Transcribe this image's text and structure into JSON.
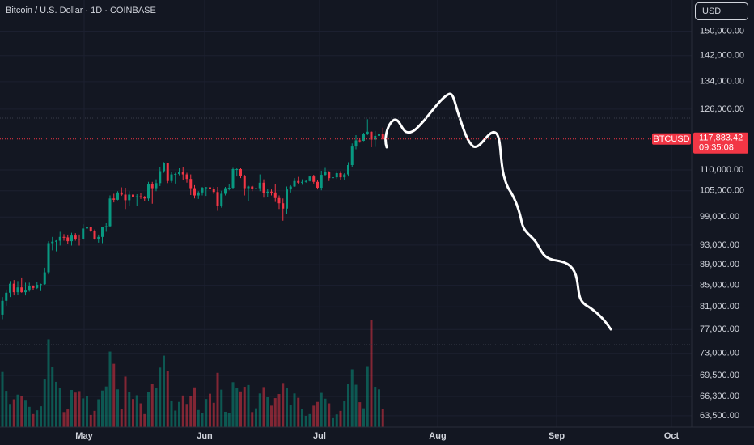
{
  "chart_data": {
    "type": "candlestick",
    "title": "Bitcoin / U.S. Dollar · 1D · COINBASE",
    "currency": "USD",
    "symbol": "BTCUSD",
    "last_price": {
      "value": 117883.42,
      "label": "117,883.42"
    },
    "countdown": "09:35:08",
    "months": [
      "May",
      "Jun",
      "Jul",
      "Aug",
      "Sep",
      "Oct"
    ],
    "up_color": "#089981",
    "down_color": "#f23645",
    "log_scale": true,
    "grid": true,
    "ylim": [
      61900,
      160800
    ],
    "yticks": [
      {
        "value": 150000,
        "label": "150,000.00"
      },
      {
        "value": 142000,
        "label": "142,000.00"
      },
      {
        "value": 134000,
        "label": "134,000.00"
      },
      {
        "value": 126000,
        "label": "126,000.00"
      },
      {
        "value": 110000,
        "label": "110,000.00"
      },
      {
        "value": 105000,
        "label": "105,000.00"
      },
      {
        "value": 99000,
        "label": "99,000.00"
      },
      {
        "value": 93000,
        "label": "93,000.00"
      },
      {
        "value": 89000,
        "label": "89,000.00"
      },
      {
        "value": 85000,
        "label": "85,000.00"
      },
      {
        "value": 81000,
        "label": "81,000.00"
      },
      {
        "value": 77000,
        "label": "77,000.00"
      },
      {
        "value": 73000,
        "label": "73,000.00"
      },
      {
        "value": 69500,
        "label": "69,500.00"
      },
      {
        "value": 66300,
        "label": "66,300.00"
      },
      {
        "value": 63500,
        "label": "63,500.00"
      }
    ],
    "candles": [
      [
        79600,
        82800,
        78800,
        82100
      ],
      [
        82100,
        84200,
        81200,
        83600
      ],
      [
        83600,
        85800,
        82800,
        85300
      ],
      [
        85300,
        86000,
        83100,
        83700
      ],
      [
        83700,
        85800,
        83200,
        84600
      ],
      [
        84600,
        86500,
        83600,
        83700
      ],
      [
        83700,
        85500,
        83100,
        84000
      ],
      [
        84000,
        85500,
        83800,
        84900
      ],
      [
        84900,
        85000,
        84100,
        84500
      ],
      [
        84500,
        85600,
        84300,
        85100
      ],
      [
        85100,
        85300,
        83900,
        85200
      ],
      [
        85200,
        88400,
        85100,
        87500
      ],
      [
        87500,
        93800,
        87100,
        93400
      ],
      [
        93400,
        94700,
        91900,
        93700
      ],
      [
        93700,
        94000,
        91700,
        93900
      ],
      [
        93900,
        95800,
        92900,
        94700
      ],
      [
        94700,
        95300,
        93900,
        94600
      ],
      [
        94600,
        95200,
        93300,
        93800
      ],
      [
        93800,
        95600,
        92900,
        95000
      ],
      [
        95000,
        95500,
        93900,
        94300
      ],
      [
        94300,
        95200,
        92900,
        94200
      ],
      [
        94200,
        97400,
        94100,
        96500
      ],
      [
        96500,
        97900,
        96300,
        96900
      ],
      [
        96900,
        96900,
        95700,
        95900
      ],
      [
        95900,
        96300,
        94100,
        94300
      ],
      [
        94300,
        95200,
        93500,
        94700
      ],
      [
        94700,
        96900,
        93400,
        96800
      ],
      [
        96800,
        97700,
        95800,
        97000
      ],
      [
        97000,
        103900,
        96900,
        103200
      ],
      [
        103200,
        104300,
        102300,
        102900
      ],
      [
        102900,
        104900,
        102800,
        104600
      ],
      [
        104600,
        105800,
        103800,
        104100
      ],
      [
        104100,
        105700,
        100800,
        102800
      ],
      [
        102800,
        104900,
        101400,
        104100
      ],
      [
        104100,
        104300,
        102600,
        103500
      ],
      [
        103500,
        104200,
        101400,
        103700
      ],
      [
        103700,
        104500,
        103100,
        103500
      ],
      [
        103500,
        103800,
        102600,
        103200
      ],
      [
        103200,
        107100,
        102700,
        106500
      ],
      [
        106500,
        107100,
        102000,
        105600
      ],
      [
        105600,
        107700,
        104900,
        106800
      ],
      [
        106800,
        110800,
        106100,
        109700
      ],
      [
        109700,
        111900,
        109300,
        111700
      ],
      [
        111700,
        111800,
        106800,
        107300
      ],
      [
        107300,
        109500,
        106900,
        108900
      ],
      [
        108900,
        109300,
        106700,
        109000
      ],
      [
        109000,
        110400,
        108700,
        109400
      ],
      [
        109400,
        110700,
        107600,
        108900
      ],
      [
        108900,
        109300,
        106900,
        107800
      ],
      [
        107800,
        108900,
        104000,
        105600
      ],
      [
        105600,
        106300,
        103200,
        103900
      ],
      [
        103900,
        104900,
        103100,
        104600
      ],
      [
        104600,
        105900,
        103900,
        105700
      ],
      [
        105700,
        105900,
        103800,
        105800
      ],
      [
        105800,
        106800,
        104900,
        105400
      ],
      [
        105400,
        105900,
        104200,
        104700
      ],
      [
        104700,
        105900,
        100400,
        101500
      ],
      [
        101500,
        105000,
        101100,
        104300
      ],
      [
        104300,
        105900,
        103900,
        105600
      ],
      [
        105600,
        106500,
        105100,
        105700
      ],
      [
        105700,
        110500,
        105400,
        110200
      ],
      [
        110200,
        110400,
        108400,
        110200
      ],
      [
        110200,
        110400,
        108000,
        108600
      ],
      [
        108600,
        108800,
        103900,
        105600
      ],
      [
        105600,
        106200,
        102700,
        106000
      ],
      [
        106000,
        106200,
        104900,
        105400
      ],
      [
        105400,
        106200,
        104500,
        105600
      ],
      [
        105600,
        108900,
        104900,
        106900
      ],
      [
        106900,
        107700,
        103400,
        104500
      ],
      [
        104500,
        105500,
        103500,
        104800
      ],
      [
        104800,
        105300,
        103900,
        104600
      ],
      [
        104600,
        106500,
        102400,
        103300
      ],
      [
        103300,
        103900,
        100800,
        102100
      ],
      [
        102100,
        103200,
        98200,
        100900
      ],
      [
        100900,
        106000,
        99600,
        105300
      ],
      [
        105300,
        106300,
        104600,
        106000
      ],
      [
        106000,
        108000,
        105900,
        107300
      ],
      [
        107300,
        108300,
        106600,
        106900
      ],
      [
        106900,
        107700,
        106400,
        107100
      ],
      [
        107100,
        107600,
        106900,
        107300
      ],
      [
        107300,
        108500,
        107200,
        108400
      ],
      [
        108400,
        108800,
        106700,
        107100
      ],
      [
        107100,
        107600,
        105300,
        105700
      ],
      [
        105700,
        109800,
        105100,
        108800
      ],
      [
        108800,
        110500,
        108600,
        109600
      ],
      [
        109600,
        109700,
        107300,
        108000
      ],
      [
        108000,
        108400,
        107800,
        108200
      ],
      [
        108200,
        109700,
        107800,
        109200
      ],
      [
        109200,
        109700,
        107500,
        108200
      ],
      [
        108200,
        109200,
        107500,
        108900
      ],
      [
        108900,
        111900,
        108400,
        111200
      ],
      [
        111200,
        116700,
        110600,
        115900
      ],
      [
        115900,
        118900,
        115200,
        117500
      ],
      [
        117500,
        118200,
        116900,
        117400
      ],
      [
        117400,
        119500,
        117300,
        119100
      ],
      [
        119100,
        123200,
        118900,
        119800
      ],
      [
        119800,
        119900,
        115700,
        117700
      ],
      [
        117700,
        120000,
        115800,
        118700
      ],
      [
        118700,
        120800,
        117900,
        119300
      ],
      [
        119300,
        120900,
        117600,
        117883.42
      ]
    ],
    "volumes": [
      19000,
      12500,
      8000,
      9600,
      11200,
      10800,
      9400,
      7000,
      4500,
      5800,
      7200,
      16400,
      30200,
      20800,
      15600,
      13400,
      5200,
      6100,
      12800,
      11900,
      12400,
      9900,
      10700,
      4200,
      5600,
      9600,
      12600,
      14000,
      26000,
      21800,
      13000,
      6400,
      17400,
      12100,
      9700,
      11000,
      8200,
      4500,
      12000,
      14800,
      13400,
      20500,
      24600,
      19300,
      9200,
      5700,
      8700,
      10900,
      8000,
      10800,
      13700,
      5900,
      4800,
      9700,
      11500,
      8400,
      18700,
      12900,
      5300,
      4900,
      15500,
      13600,
      12300,
      13900,
      14500,
      5200,
      6500,
      11600,
      13800,
      10300,
      7400,
      10000,
      11400,
      15200,
      13500,
      7600,
      11600,
      10100,
      6400,
      3900,
      4500,
      7400,
      8700,
      11800,
      9800,
      8200,
      3100,
      4400,
      5600,
      9100,
      14800,
      19900,
      14600,
      8600,
      6500,
      21000,
      37000,
      13900,
      13000,
      6300
    ]
  }
}
